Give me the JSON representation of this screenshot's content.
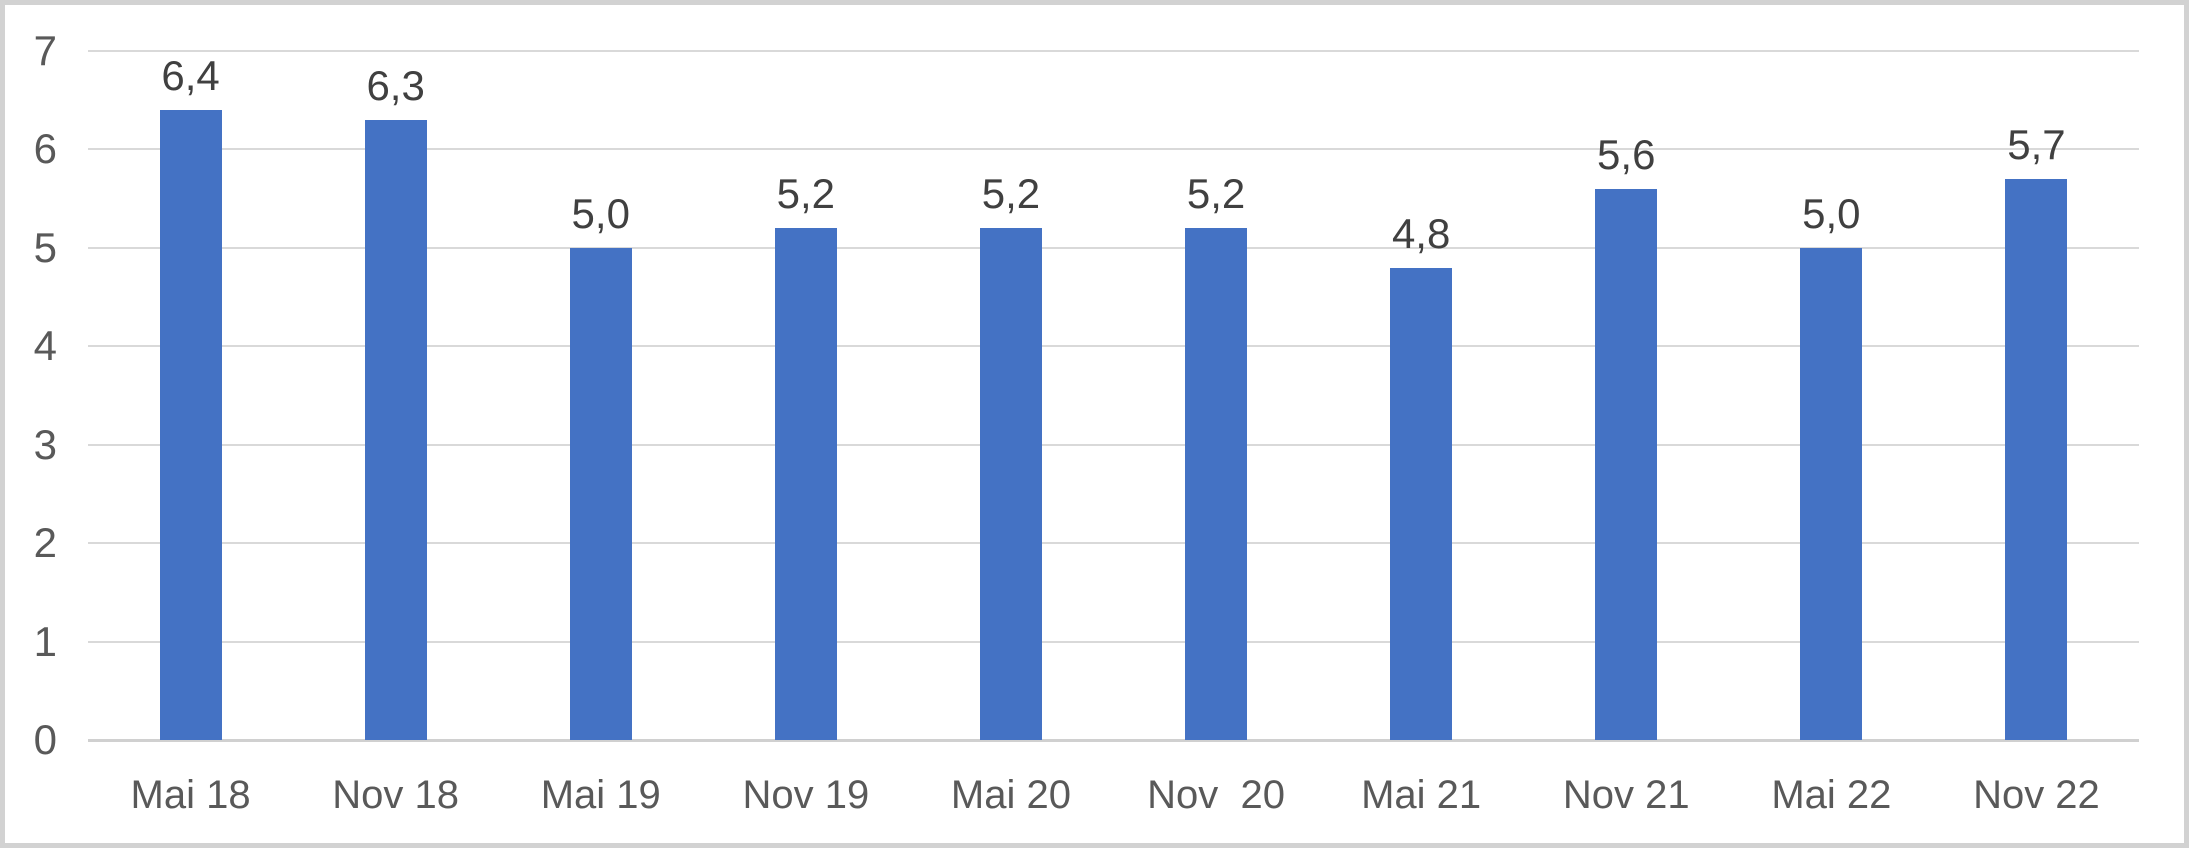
{
  "chart_data": {
    "type": "bar",
    "title": "",
    "xlabel": "",
    "ylabel": "",
    "categories": [
      "Mai 18",
      "Nov 18",
      "Mai 19",
      "Nov 19",
      "Mai 20",
      "Nov  20",
      "Mai 21",
      "Nov 21",
      "Mai 22",
      "Nov 22"
    ],
    "values": [
      6.4,
      6.3,
      5.0,
      5.2,
      5.2,
      5.2,
      4.8,
      5.6,
      5.0,
      5.7
    ],
    "value_labels": [
      "6,4",
      "6,3",
      "5,0",
      "5,2",
      "5,2",
      "5,2",
      "4,8",
      "5,6",
      "5,0",
      "5,7"
    ],
    "ylim": [
      0,
      7
    ],
    "yticks": [
      0,
      1,
      2,
      3,
      4,
      5,
      6,
      7
    ],
    "ytick_labels": [
      "0",
      "1",
      "2",
      "3",
      "4",
      "5",
      "6",
      "7"
    ],
    "grid": true,
    "legend": null,
    "colors": {
      "bar": "#4472c4",
      "gridline": "#d9d9d9",
      "axis_line": "#d0d0d0",
      "tick_text": "#595959",
      "data_label_text": "#404040",
      "frame_border": "#d2d2d2",
      "background": "#ffffff"
    }
  }
}
